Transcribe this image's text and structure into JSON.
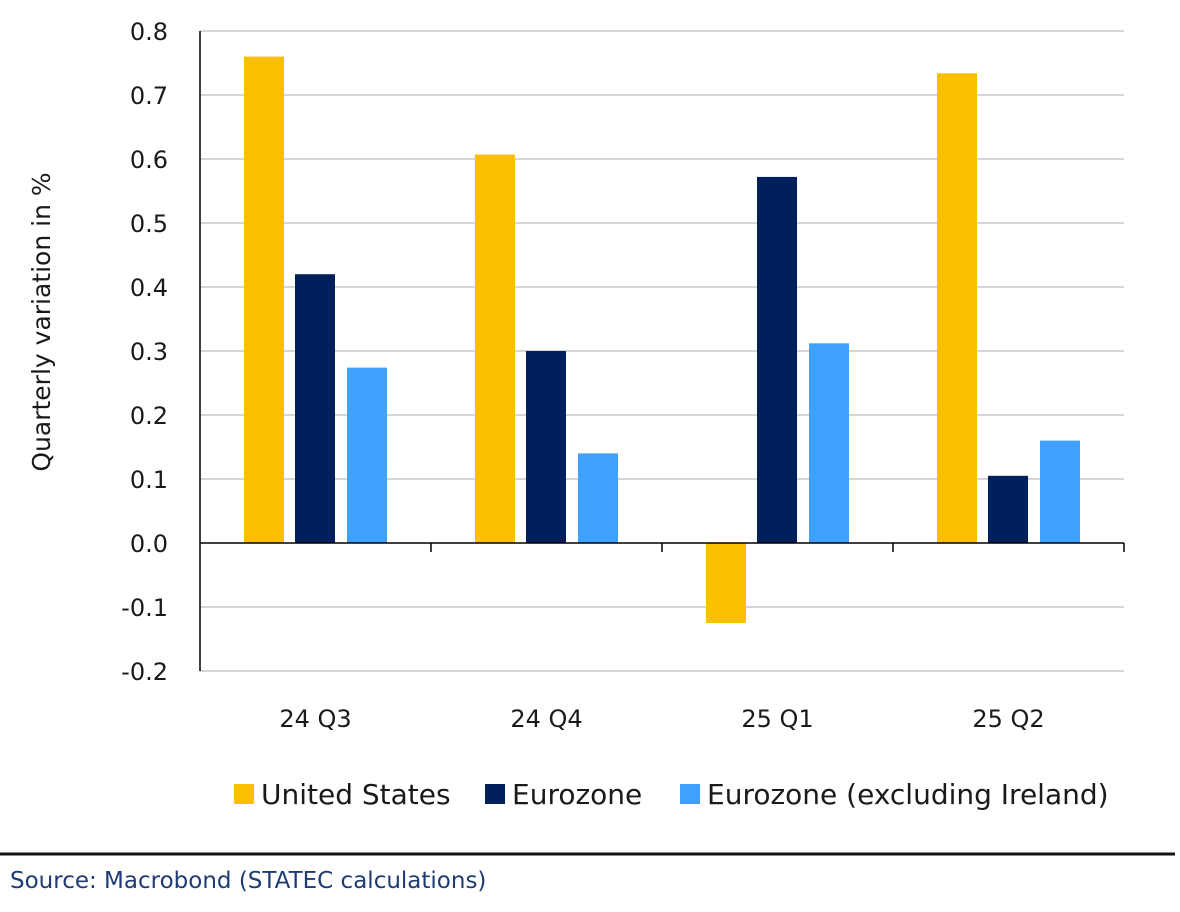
{
  "chart_data": {
    "type": "bar",
    "categories": [
      "24 Q3",
      "24 Q4",
      "25 Q1",
      "25 Q2"
    ],
    "series": [
      {
        "name": "United States",
        "color": "#fbbf00",
        "values": [
          0.76,
          0.607,
          -0.125,
          0.734
        ]
      },
      {
        "name": "Eurozone",
        "color": "#00205b",
        "values": [
          0.42,
          0.3,
          0.572,
          0.105
        ]
      },
      {
        "name": "Eurozone (excluding Ireland)",
        "color": "#3ea1fb",
        "values": [
          0.274,
          0.14,
          0.312,
          0.16
        ]
      }
    ],
    "title": "",
    "xlabel": "",
    "ylabel": "Quarterly variation in %",
    "ylim": [
      -0.2,
      0.8
    ],
    "yticks": [
      "0.8",
      "0.7",
      "0.6",
      "0.5",
      "0.4",
      "0.3",
      "0.2",
      "0.1",
      "0.0",
      "-0.1",
      "-0.2"
    ],
    "grid": true,
    "legend": "bottom"
  },
  "source": "Source: Macrobond (STATEC calculations)"
}
